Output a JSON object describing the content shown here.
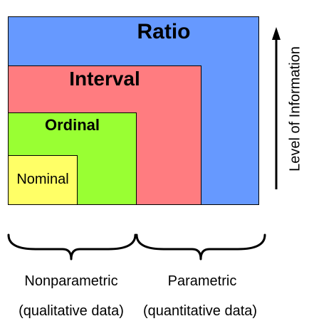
{
  "levels": {
    "ratio": "Ratio",
    "interval": "Interval",
    "ordinal": "Ordinal",
    "nominal": "Nominal"
  },
  "axis_label": "Level of Information",
  "groups": {
    "nonparametric": {
      "name": "Nonparametric",
      "description": "(qualitative data)"
    },
    "parametric": {
      "name": "Parametric",
      "description": "(quantitative data)"
    }
  },
  "colors": {
    "ratio": "#6699ff",
    "interval": "#ff7c80",
    "ordinal": "#99ff33",
    "nominal": "#ffff66",
    "outline": "#000000"
  }
}
